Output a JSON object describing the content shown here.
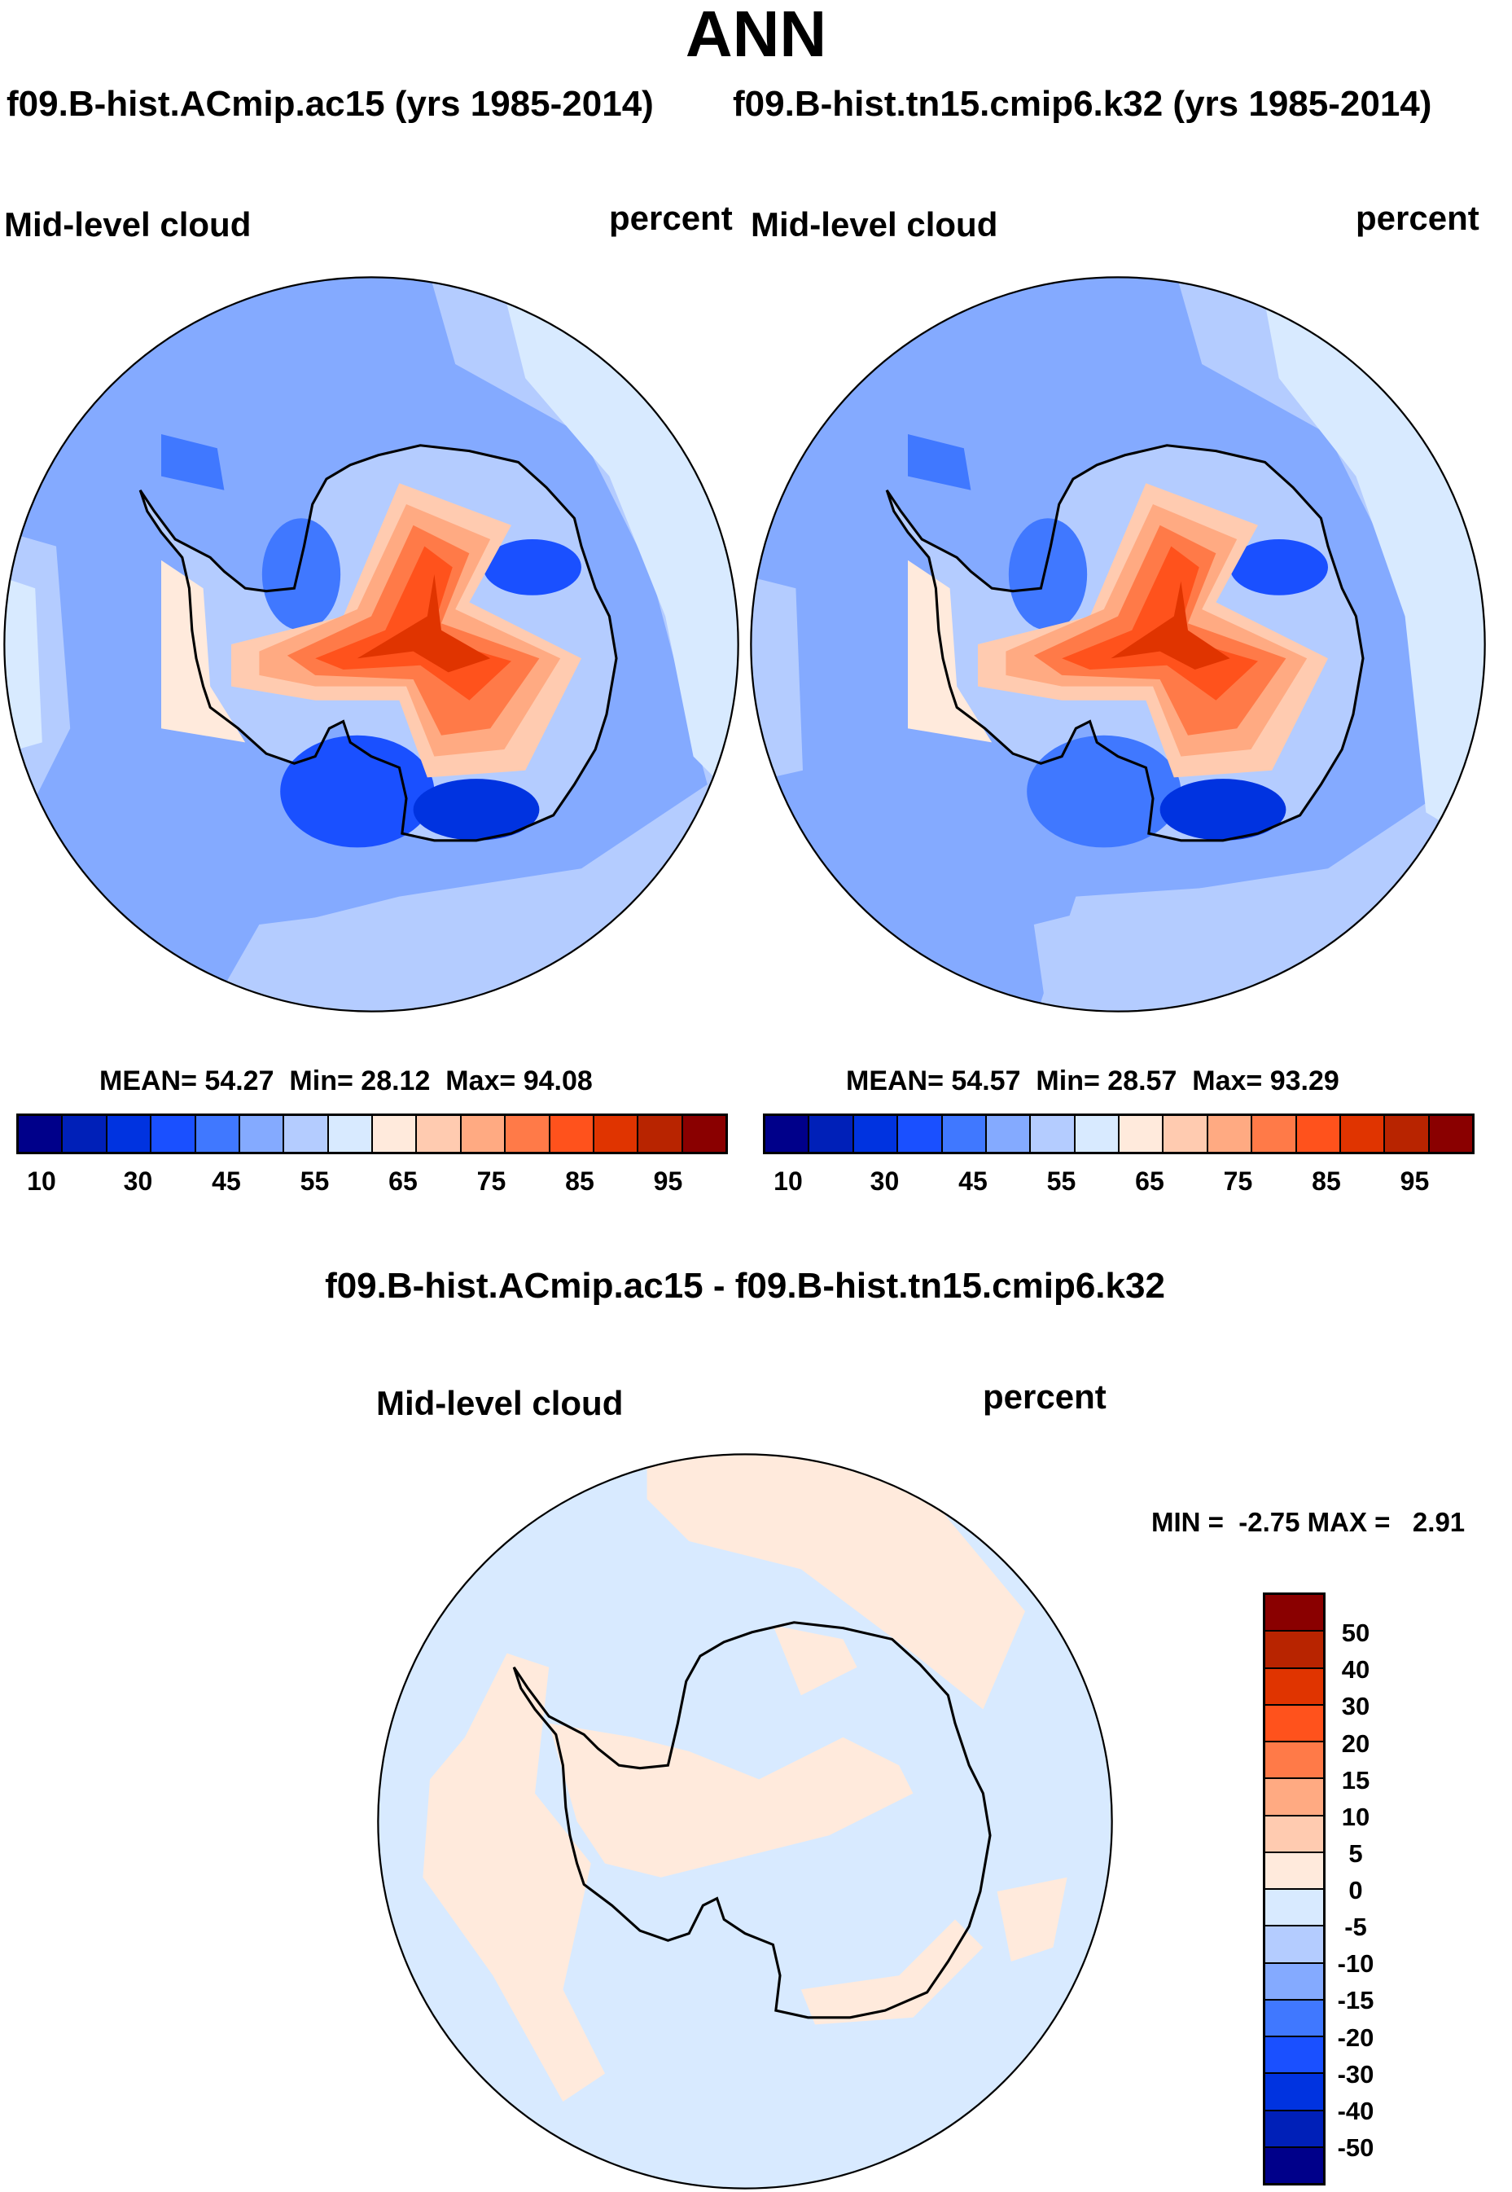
{
  "title": "ANN",
  "panels": [
    {
      "case": "f09.B-hist.ACmip.ac15 (yrs 1985-2014)",
      "variable": "Mid-level cloud",
      "units": "percent",
      "stats": {
        "mean_label": "MEAN=",
        "mean": "54.27",
        "min_label": "Min=",
        "min": "28.12",
        "max_label": "Max=",
        "max": "94.08"
      }
    },
    {
      "case": "f09.B-hist.tn15.cmip6.k32 (yrs 1985-2014)",
      "variable": "Mid-level cloud",
      "units": "percent",
      "stats": {
        "mean_label": "MEAN=",
        "mean": "54.57",
        "min_label": "Min=",
        "min": "28.57",
        "max_label": "Max=",
        "max": "93.29"
      }
    }
  ],
  "diff": {
    "title": "f09.B-hist.ACmip.ac15 - f09.B-hist.tn15.cmip6.k32",
    "variable": "Mid-level cloud",
    "units": "percent",
    "minmax": "MIN =  -2.75 MAX =   2.91",
    "levels": [
      "50",
      "40",
      "30",
      "20",
      "15",
      "10",
      "5",
      "0",
      "-5",
      "-10",
      "-15",
      "-20",
      "-30",
      "-40",
      "-50"
    ]
  },
  "colorbar": {
    "labels": [
      "10",
      "30",
      "45",
      "55",
      "65",
      "75",
      "85",
      "95"
    ],
    "colors": [
      "#00008a",
      "#0020b8",
      "#0033e0",
      "#1a50ff",
      "#4078ff",
      "#84aaff",
      "#b4ccff",
      "#d8eaff",
      "#ffeadc",
      "#ffcbb0",
      "#ffaa82",
      "#ff7a48",
      "#ff521c",
      "#e03400",
      "#b82400",
      "#8a0000"
    ]
  }
}
